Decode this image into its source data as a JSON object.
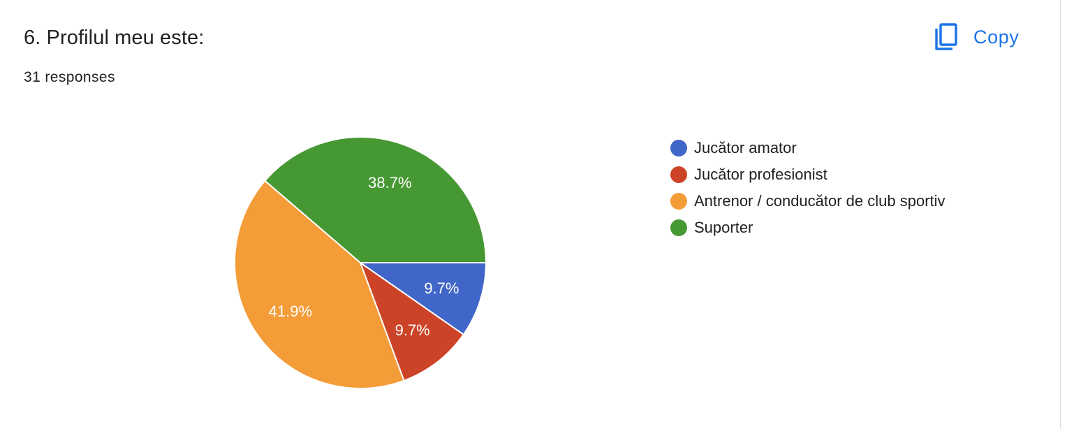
{
  "question": {
    "title": "6. Profilul meu este:",
    "responses": "31 responses"
  },
  "toolbar": {
    "copy_label": "Copy",
    "copy_icon": "copy-icon"
  },
  "colors": {
    "accent": "#1a73e8",
    "text": "#202124"
  },
  "chart_data": {
    "type": "pie",
    "title": "6. Profilul meu este:",
    "total": 31,
    "legend_position": "right",
    "slices": [
      {
        "label": "Jucător amator",
        "value": 3,
        "percent_label": "9.7%",
        "color": "#3f66c8"
      },
      {
        "label": "Jucător profesionist",
        "value": 3,
        "percent_label": "9.7%",
        "color": "#cc4327"
      },
      {
        "label": "Antrenor / conducător de club sportiv",
        "value": 13,
        "percent_label": "41.9%",
        "color": "#f39c38"
      },
      {
        "label": "Suporter",
        "value": 12,
        "percent_label": "38.7%",
        "color": "#469833"
      }
    ]
  }
}
